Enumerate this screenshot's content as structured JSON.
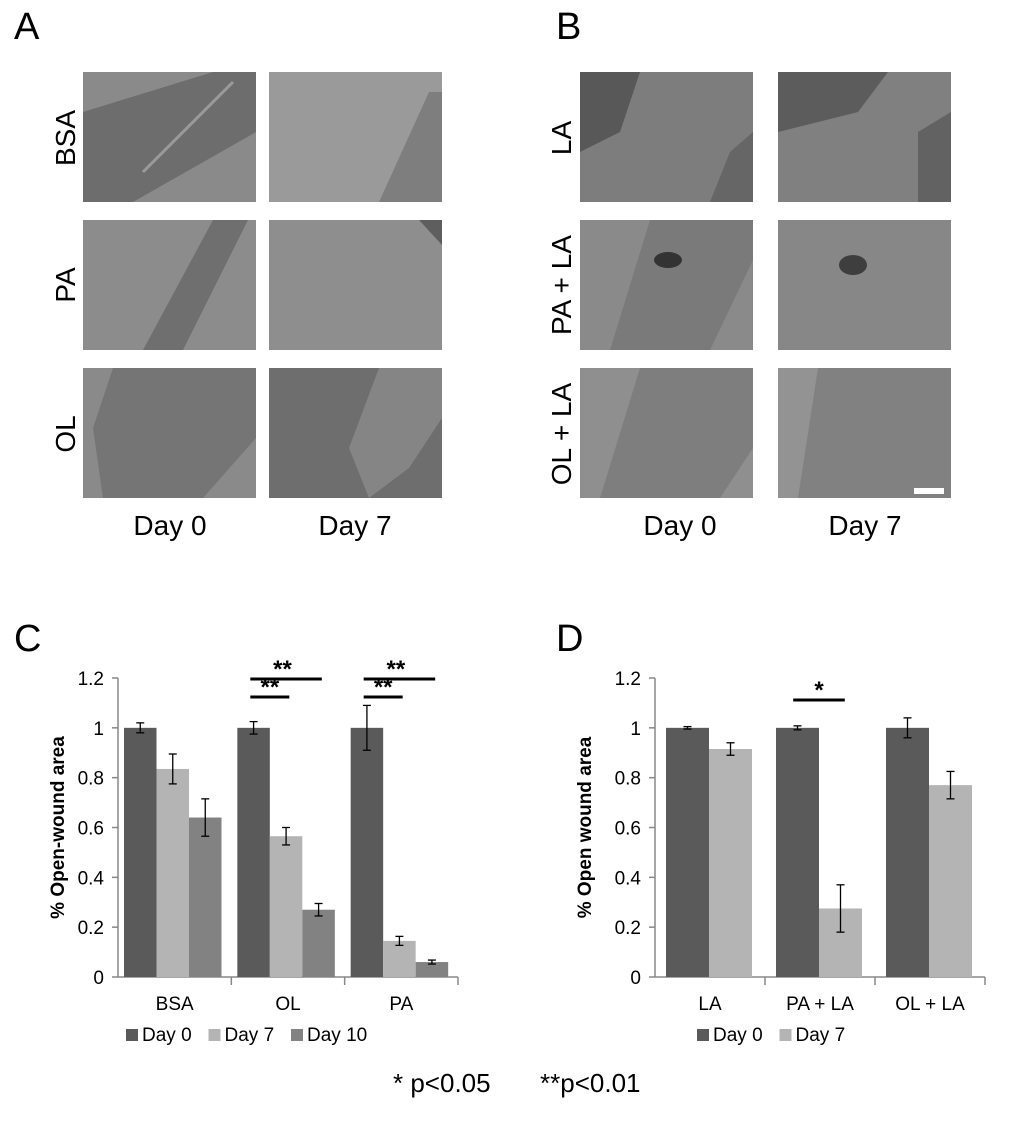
{
  "panels": {
    "A": {
      "label": "A",
      "rows": [
        "BSA",
        "PA",
        "OL"
      ],
      "columns": [
        "Day 0",
        "Day 7"
      ],
      "images": [
        [
          "micrograph",
          "micrograph"
        ],
        [
          "micrograph",
          "micrograph"
        ],
        [
          "micrograph",
          "micrograph"
        ]
      ]
    },
    "B": {
      "label": "B",
      "rows": [
        "LA",
        "PA + LA",
        "OL + LA"
      ],
      "columns": [
        "Day 0",
        "Day 7"
      ]
    },
    "C": {
      "label": "C"
    },
    "D": {
      "label": "D"
    }
  },
  "colors": {
    "day0": "#5a5a5a",
    "day7": "#b4b4b4",
    "day10": "#828282",
    "scale_bar": "#ffffff"
  },
  "chart_data": [
    {
      "panel": "C",
      "type": "bar",
      "ylabel": "% Open-wound area",
      "ylim": [
        0,
        1.2
      ],
      "yticks": [
        "0",
        "0.2",
        "0.4",
        "0.6",
        "0.8",
        "1",
        "1.2"
      ],
      "categories": [
        "BSA",
        "OL",
        "PA"
      ],
      "series": [
        {
          "name": "Day 0",
          "values": [
            1.0,
            1.0,
            1.0
          ],
          "errors": [
            0.02,
            0.025,
            0.09
          ]
        },
        {
          "name": "Day 7",
          "values": [
            0.835,
            0.565,
            0.145
          ],
          "errors": [
            0.06,
            0.035,
            0.018
          ]
        },
        {
          "name": "Day 10",
          "values": [
            0.64,
            0.27,
            0.06
          ],
          "errors": [
            0.075,
            0.025,
            0.008
          ]
        }
      ],
      "annotations": [
        {
          "text": "**",
          "category": "OL",
          "from": "Day 0",
          "to": "Day 7"
        },
        {
          "text": "**",
          "category": "OL",
          "from": "Day 0",
          "to": "Day 10"
        },
        {
          "text": "**",
          "category": "PA",
          "from": "Day 0",
          "to": "Day 7"
        },
        {
          "text": "**",
          "category": "PA",
          "from": "Day 0",
          "to": "Day 10"
        }
      ],
      "legend_position": "bottom",
      "grid": false
    },
    {
      "panel": "D",
      "type": "bar",
      "ylabel": "% Open wound area",
      "ylim": [
        0,
        1.2
      ],
      "yticks": [
        "0",
        "0.2",
        "0.4",
        "0.6",
        "0.8",
        "1",
        "1.2"
      ],
      "categories": [
        "LA",
        "PA + LA",
        "OL + LA"
      ],
      "series": [
        {
          "name": "Day 0",
          "values": [
            1.0,
            1.0,
            1.0
          ],
          "errors": [
            0.005,
            0.008,
            0.04
          ]
        },
        {
          "name": "Day 7",
          "values": [
            0.915,
            0.275,
            0.77
          ],
          "errors": [
            0.025,
            0.095,
            0.055
          ]
        }
      ],
      "annotations": [
        {
          "text": "*",
          "category": "PA + LA",
          "from": "Day 0",
          "to": "Day 7"
        }
      ],
      "legend_position": "bottom",
      "grid": false
    }
  ],
  "footnote": {
    "single": "* p<0.05",
    "double": "**p<0.01"
  }
}
